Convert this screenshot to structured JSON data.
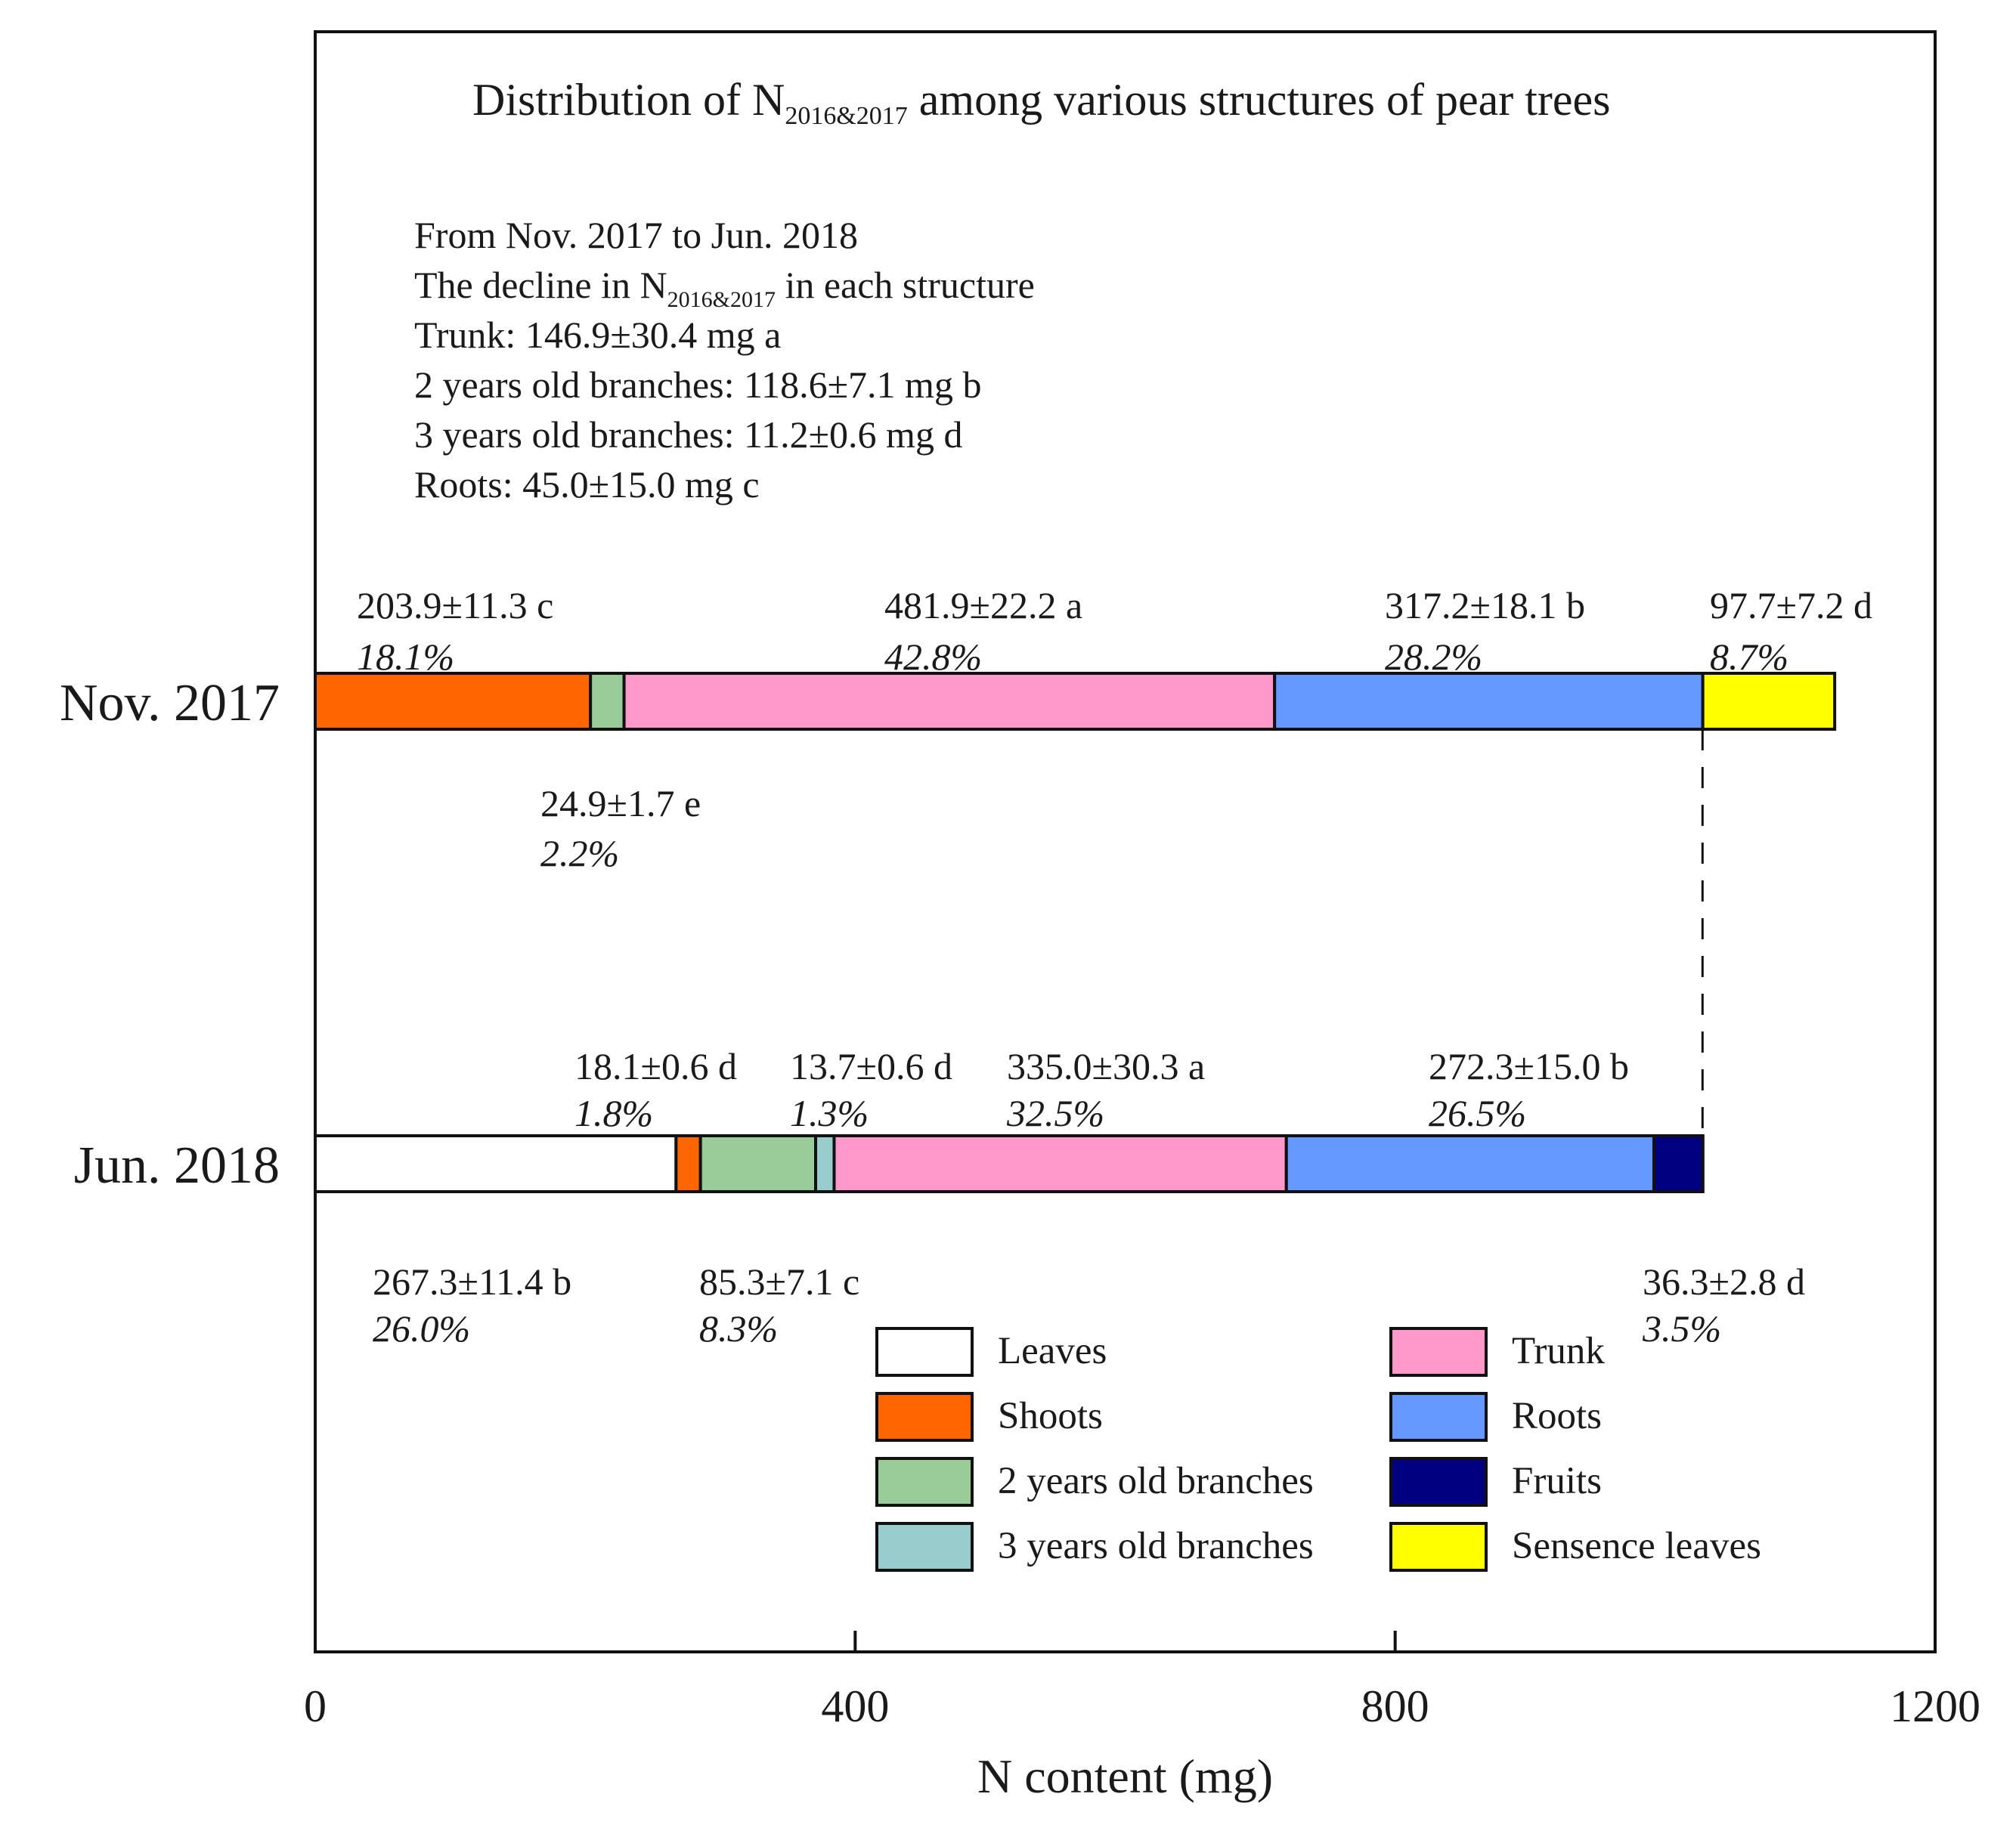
{
  "chart_data": {
    "type": "bar",
    "orientation": "horizontal",
    "stacked": true,
    "title": "Distribution of N2016&2017 among various structures of pear trees",
    "title_parts": {
      "prefix": "Distribution of N",
      "subscript": "2016&2017",
      "suffix": " among various structures of pear trees"
    },
    "xlabel": "N content (mg)",
    "ylabel": "",
    "xlim": [
      0,
      1200
    ],
    "x_ticks": [
      0,
      400,
      800,
      1200
    ],
    "x_tick_labels": [
      "0",
      "400",
      "800",
      "1200"
    ],
    "categories": [
      "Nov. 2017",
      "Jun. 2018"
    ],
    "series": [
      {
        "name": "Leaves",
        "color": "#ffffff",
        "values": [
          0,
          267.3
        ]
      },
      {
        "name": "Shoots",
        "color": "#ff6600",
        "values": [
          203.9,
          18.1
        ]
      },
      {
        "name": "2 years old branches",
        "color": "#99cc99",
        "values": [
          24.9,
          85.3
        ]
      },
      {
        "name": "3 years old branches",
        "color": "#99cccc",
        "values": [
          0,
          13.7
        ]
      },
      {
        "name": "Trunk",
        "color": "#ff99cc",
        "values": [
          481.9,
          335.0
        ]
      },
      {
        "name": "Roots",
        "color": "#6699ff",
        "values": [
          317.2,
          272.3
        ]
      },
      {
        "name": "Fruits",
        "color": "#000080",
        "values": [
          0,
          36.3
        ]
      },
      {
        "name": "Sensence leaves",
        "color": "#ffff00",
        "values": [
          97.7,
          0
        ]
      }
    ],
    "reference_line": {
      "style": "dashed",
      "x_value": 1027.7
    },
    "info_lines": [
      {
        "text": "From Nov. 2017 to Jun. 2018"
      },
      {
        "prefix": "The decline in N",
        "subscript": "2016&2017",
        "suffix": " in each structure"
      },
      {
        "text": "Trunk: 146.9±30.4 mg a"
      },
      {
        "text": "2 years old branches: 118.6±7.1 mg b"
      },
      {
        "text": "3 years old branches: 11.2±0.6 mg d"
      },
      {
        "text": "Roots: 45.0±15.0 mg c"
      }
    ],
    "annotations": [
      {
        "row": 0,
        "series": "Shoots",
        "value": "203.9±11.3 c",
        "pct": "18.1%",
        "position": "above"
      },
      {
        "row": 0,
        "series": "Trunk",
        "value": "481.9±22.2 a",
        "pct": "42.8%",
        "position": "above"
      },
      {
        "row": 0,
        "series": "Roots",
        "value": "317.2±18.1 b",
        "pct": "28.2%",
        "position": "above"
      },
      {
        "row": 0,
        "series": "Sensence leaves",
        "value": "97.7±7.2 d",
        "pct": "8.7%",
        "position": "above"
      },
      {
        "row": 0,
        "series": "2 years old branches",
        "value": "24.9±1.7 e",
        "pct": "2.2%",
        "position": "below"
      },
      {
        "row": 1,
        "series": "Shoots",
        "value": "18.1±0.6 d",
        "pct": "1.8%",
        "position": "above"
      },
      {
        "row": 1,
        "series": "3 years old branches",
        "value": "13.7±0.6 d",
        "pct": "1.3%",
        "position": "above"
      },
      {
        "row": 1,
        "series": "Trunk",
        "value": "335.0±30.3 a",
        "pct": "32.5%",
        "position": "above"
      },
      {
        "row": 1,
        "series": "Roots",
        "value": "272.3±15.0 b",
        "pct": "26.5%",
        "position": "above"
      },
      {
        "row": 1,
        "series": "Leaves",
        "value": "267.3±11.4 b",
        "pct": "26.0%",
        "position": "below"
      },
      {
        "row": 1,
        "series": "2 years old branches",
        "value": "85.3±7.1 c",
        "pct": "8.3%",
        "position": "below"
      },
      {
        "row": 1,
        "series": "Fruits",
        "value": "36.3±2.8 d",
        "pct": "3.5%",
        "position": "below"
      }
    ],
    "legend": {
      "position": "lower-center",
      "columns": [
        [
          "Leaves",
          "Shoots",
          "2 years old branches",
          "3 years old branches"
        ],
        [
          "Trunk",
          "Roots",
          "Fruits",
          "Sensence leaves"
        ]
      ]
    }
  }
}
